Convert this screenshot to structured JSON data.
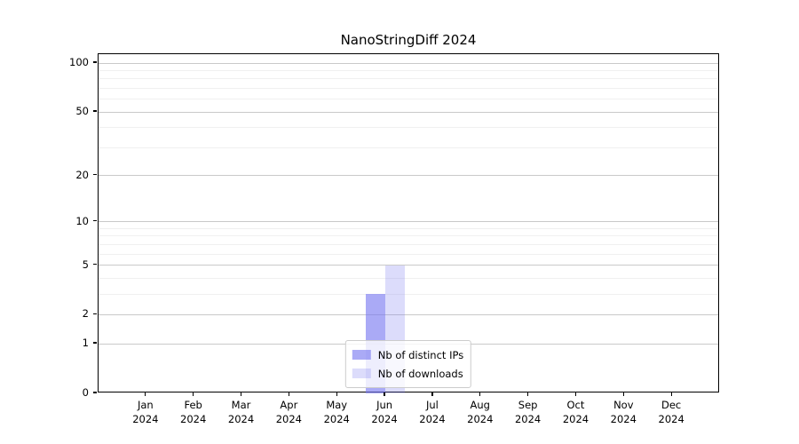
{
  "chart_data": {
    "type": "bar",
    "title": "NanoStringDiff 2024",
    "categories": [
      "Jan 2024",
      "Feb 2024",
      "Mar 2024",
      "Apr 2024",
      "May 2024",
      "Jun 2024",
      "Jul 2024",
      "Aug 2024",
      "Sep 2024",
      "Oct 2024",
      "Nov 2024",
      "Dec 2024"
    ],
    "series": [
      {
        "name": "Nb of distinct IPs",
        "color": "rgba(120,120,240,0.63)",
        "values": [
          null,
          null,
          null,
          null,
          null,
          3,
          null,
          null,
          null,
          null,
          null,
          null
        ]
      },
      {
        "name": "Nb of downloads",
        "color": "rgba(120,120,240,0.26)",
        "values": [
          null,
          null,
          null,
          null,
          null,
          5,
          null,
          null,
          null,
          null,
          null,
          null
        ]
      }
    ],
    "y_axis": {
      "scale": "log1p",
      "ticks": [
        0,
        1,
        2,
        5,
        10,
        20,
        50,
        100
      ],
      "minor_ticks": [
        3,
        4,
        6,
        7,
        8,
        9,
        30,
        40,
        60,
        70,
        80,
        90
      ],
      "max": 100
    },
    "x_axis": {
      "label_lines": 2
    },
    "legend": {
      "position": "lower center"
    },
    "grid": true,
    "colors": {
      "major_grid": "#c9c9c9",
      "minor_grid": "#f0f0f0",
      "axis": "#000000",
      "background": "#ffffff"
    }
  }
}
